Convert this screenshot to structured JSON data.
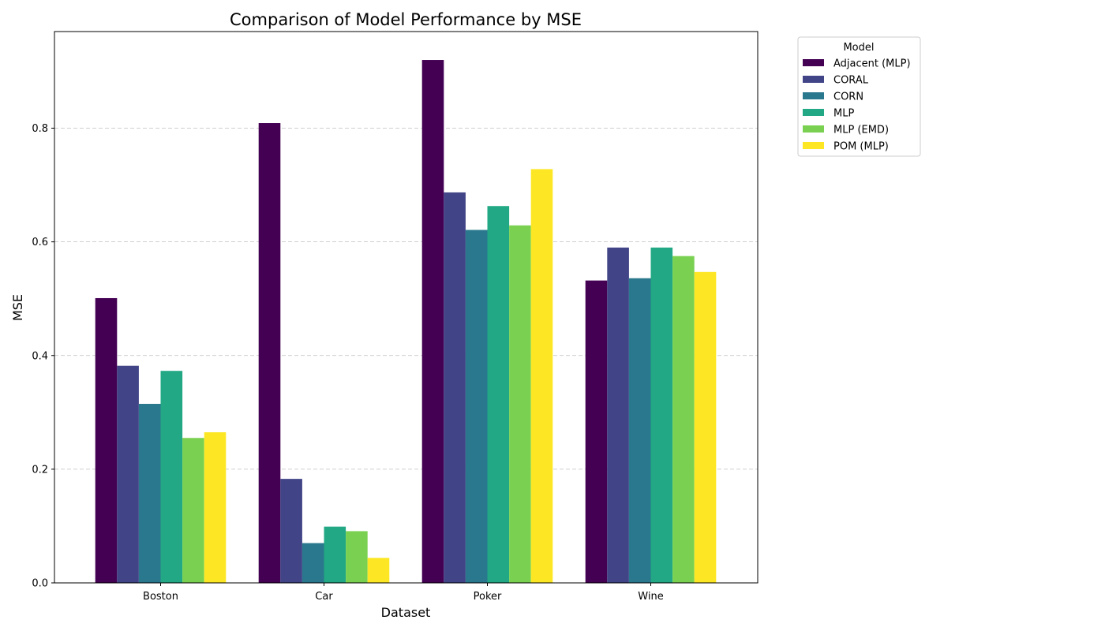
{
  "chart_data": {
    "type": "bar",
    "title": "Comparison of Model Performance by MSE",
    "xlabel": "Dataset",
    "ylabel": "MSE",
    "ylim": [
      0,
      0.97
    ],
    "yticks": [
      0.0,
      0.2,
      0.4,
      0.6,
      0.8
    ],
    "ytick_labels": [
      "0.0",
      "0.2",
      "0.4",
      "0.6",
      "0.8"
    ],
    "grid": "y-dashed",
    "categories": [
      "Boston",
      "Car",
      "Poker",
      "Wine"
    ],
    "legend": {
      "title": "Model",
      "placement": "outside-top-right"
    },
    "series": [
      {
        "name": "Adjacent (MLP)",
        "color": "#440154",
        "values": [
          0.501,
          0.809,
          0.92,
          0.532
        ]
      },
      {
        "name": "CORAL",
        "color": "#414487",
        "values": [
          0.382,
          0.183,
          0.687,
          0.59
        ]
      },
      {
        "name": "CORN",
        "color": "#2a788e",
        "values": [
          0.315,
          0.07,
          0.621,
          0.536
        ]
      },
      {
        "name": "MLP",
        "color": "#22a884",
        "values": [
          0.373,
          0.099,
          0.663,
          0.59
        ]
      },
      {
        "name": "MLP (EMD)",
        "color": "#7ad151",
        "values": [
          0.255,
          0.091,
          0.629,
          0.575
        ]
      },
      {
        "name": "POM (MLP)",
        "color": "#fde725",
        "values": [
          0.265,
          0.044,
          0.728,
          0.547
        ]
      }
    ]
  }
}
